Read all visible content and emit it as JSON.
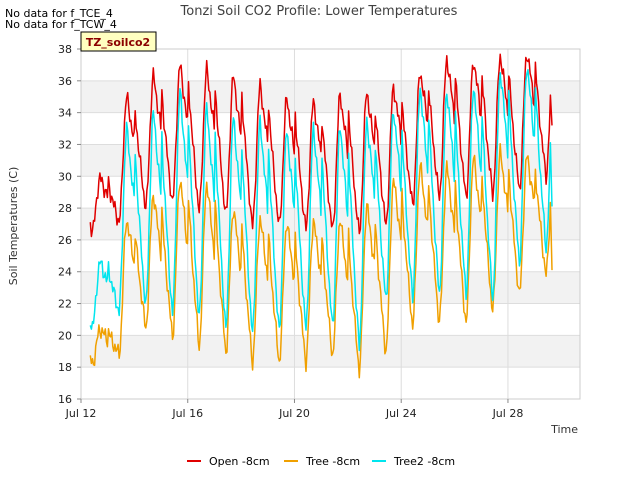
{
  "no_data_messages": [
    "No data for f_TCE_4",
    "No data for f_TCW_4"
  ],
  "chart_data": {
    "type": "line",
    "title": "Tonzi Soil CO2 Profile: Lower Temperatures",
    "xlabel": "Time",
    "ylabel": "Soil Temperatures (C)",
    "site_tag": "TZ_soilco2",
    "xlim": [
      12.0,
      30.7
    ],
    "ylim": [
      16,
      38
    ],
    "x_ticks": [
      12,
      16,
      20,
      24,
      28
    ],
    "x_tick_labels": [
      "Jul 12",
      "Jul 16",
      "Jul 20",
      "Jul 24",
      "Jul 28"
    ],
    "y_ticks": [
      16,
      18,
      20,
      22,
      24,
      26,
      28,
      30,
      32,
      34,
      36,
      38
    ],
    "grid": true,
    "legend_position": "bottom-center",
    "days": [
      12,
      13,
      14,
      15,
      16,
      17,
      18,
      19,
      20,
      21,
      22,
      23,
      24,
      25,
      26,
      27,
      28,
      29
    ],
    "series": [
      {
        "name": "Open -8cm",
        "color": "#e00000",
        "start": 29.9,
        "end": 33.2,
        "daily_min": [
          26.6,
          27.1,
          28.0,
          28.3,
          27.8,
          27.5,
          26.8,
          26.8,
          26.6,
          26.5,
          26.3,
          26.8,
          28.1,
          28.6,
          28.6,
          28.8,
          29.1,
          30.0
        ],
        "daily_max": [
          null,
          35.0,
          36.3,
          37.0,
          36.7,
          36.3,
          35.7,
          34.9,
          34.7,
          35.1,
          35.3,
          35.6,
          36.6,
          37.4,
          37.3,
          37.6,
          37.8,
          37.8
        ]
      },
      {
        "name": "Tree -8cm",
        "color": "#f0a000",
        "start": 20.4,
        "end": 24.1,
        "daily_min": [
          18.2,
          18.8,
          20.4,
          19.9,
          19.3,
          18.9,
          18.3,
          18.3,
          18.3,
          18.7,
          17.8,
          18.9,
          20.6,
          20.8,
          20.7,
          21.5,
          22.5,
          23.8
        ],
        "daily_max": [
          null,
          27.3,
          28.9,
          29.9,
          29.6,
          28.0,
          27.4,
          27.1,
          27.2,
          27.3,
          28.2,
          29.8,
          30.7,
          30.6,
          31.2,
          31.5,
          31.3,
          31.2
        ]
      },
      {
        "name": "Tree2 -8cm",
        "color": "#00e5ee",
        "start": 24.6,
        "end": 28.1,
        "daily_min": [
          20.5,
          21.5,
          21.8,
          21.3,
          21.0,
          20.3,
          20.0,
          20.1,
          20.3,
          20.4,
          19.2,
          22.1,
          22.3,
          22.5,
          22.5,
          22.2,
          24.5,
          25.5
        ],
        "daily_max": [
          null,
          33.0,
          34.0,
          35.3,
          34.3,
          33.7,
          33.4,
          32.9,
          33.0,
          33.2,
          33.5,
          34.2,
          35.6,
          35.4,
          35.7,
          36.6,
          37.0,
          35.5
        ]
      }
    ]
  }
}
